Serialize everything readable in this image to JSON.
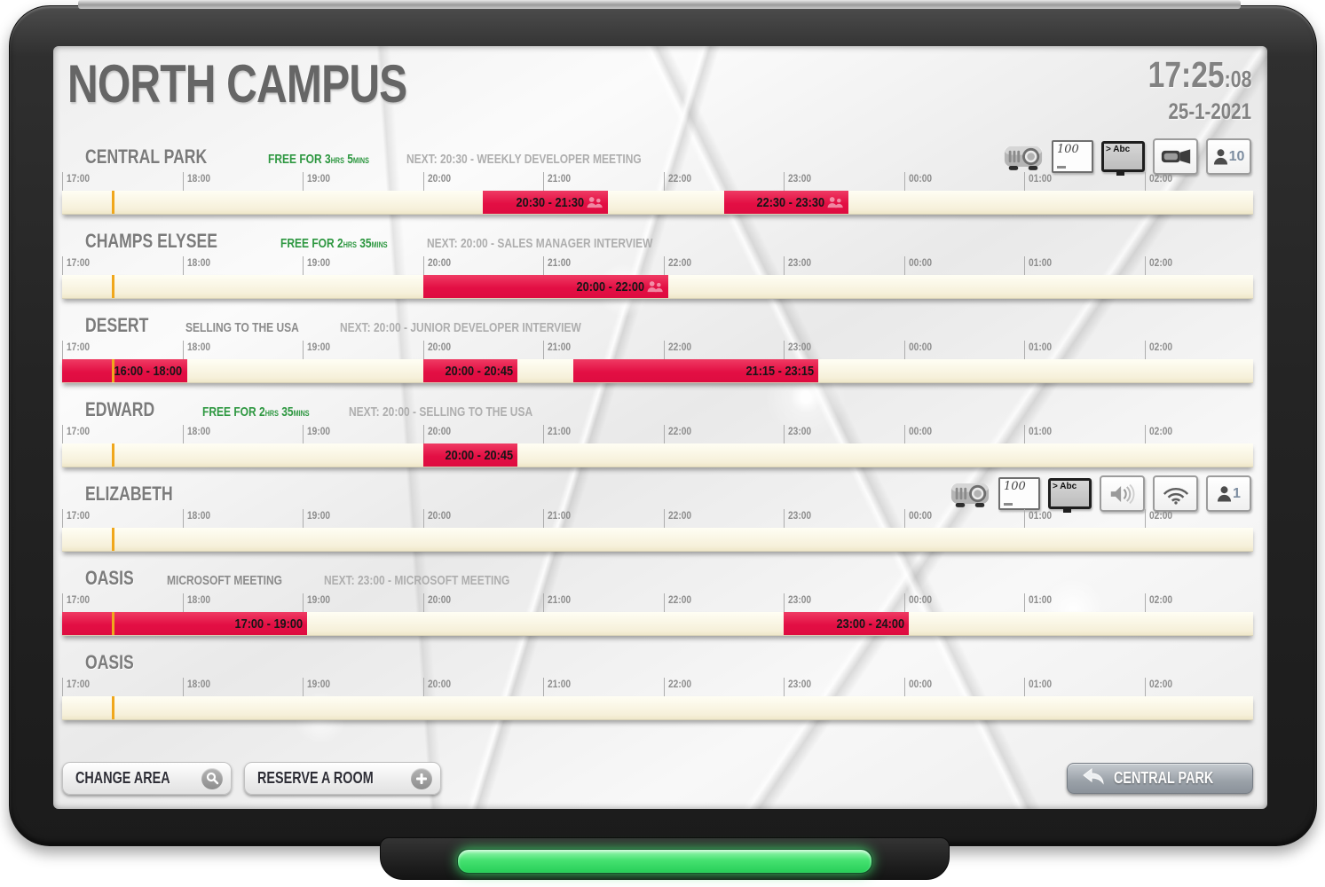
{
  "header": {
    "title": "NORTH CAMPUS",
    "clock_hm": "17:25",
    "clock_sec": ":08",
    "date": "25-1-2021"
  },
  "timeline": {
    "tick_labels": [
      "17:00",
      "18:00",
      "19:00",
      "20:00",
      "21:00",
      "22:00",
      "23:00",
      "00:00",
      "01:00",
      "02:00"
    ],
    "hour_step_minutes": 60,
    "total_minutes": 594,
    "current_time": "17:25",
    "current_minutes": 25
  },
  "rooms": [
    {
      "name": "CENTRAL PARK",
      "status": {
        "type": "free",
        "prefix": "FREE FOR",
        "hours": "3",
        "hours_unit": "HRS",
        "mins": "5",
        "mins_unit": "MINS"
      },
      "next": "NEXT: 20:30 - WEEKLY DEVELOPER MEETING",
      "icons": [
        {
          "type": "projector"
        },
        {
          "type": "whiteboard",
          "value": "100"
        },
        {
          "type": "tv",
          "value": "> Abc"
        },
        {
          "type": "videocam"
        },
        {
          "type": "capacity",
          "value": "10"
        }
      ],
      "bookings": [
        {
          "label": "20:30 - 21:30",
          "start_min": 210,
          "end_min": 270,
          "people_icon": true
        },
        {
          "label": "22:30 - 23:30",
          "start_min": 330,
          "end_min": 390,
          "people_icon": true
        }
      ]
    },
    {
      "name": "CHAMPS ELYSEE",
      "status": {
        "type": "free",
        "prefix": "FREE FOR",
        "hours": "2",
        "hours_unit": "HRS",
        "mins": "35",
        "mins_unit": "MINS"
      },
      "next": "NEXT: 20:00 - SALES MANAGER INTERVIEW",
      "icons": [],
      "bookings": [
        {
          "label": "20:00 - 22:00",
          "start_min": 180,
          "end_min": 300,
          "people_icon": true
        }
      ]
    },
    {
      "name": "DESERT",
      "status": {
        "type": "meeting",
        "label": "SELLING TO THE USA"
      },
      "next": "NEXT: 20:00 - JUNIOR DEVELOPER INTERVIEW",
      "icons": [],
      "bookings": [
        {
          "label": "16:00 - 18:00",
          "start_min": -60,
          "end_min": 60,
          "people_icon": false
        },
        {
          "label": "20:00 - 20:45",
          "start_min": 180,
          "end_min": 225,
          "people_icon": false
        },
        {
          "label": "21:15 - 23:15",
          "start_min": 255,
          "end_min": 375,
          "people_icon": false
        }
      ]
    },
    {
      "name": "EDWARD",
      "status": {
        "type": "free",
        "prefix": "FREE FOR",
        "hours": "2",
        "hours_unit": "HRS",
        "mins": "35",
        "mins_unit": "MINS"
      },
      "next": "NEXT: 20:00 - SELLING TO THE USA",
      "icons": [],
      "bookings": [
        {
          "label": "20:00 - 20:45",
          "start_min": 180,
          "end_min": 225,
          "people_icon": false
        }
      ]
    },
    {
      "name": "ELIZABETH",
      "status": {
        "type": "none"
      },
      "next": "",
      "icons": [
        {
          "type": "projector"
        },
        {
          "type": "whiteboard",
          "value": "100"
        },
        {
          "type": "tv",
          "value": "> Abc"
        },
        {
          "type": "speaker"
        },
        {
          "type": "wifi"
        },
        {
          "type": "capacity",
          "value": "1"
        }
      ],
      "bookings": []
    },
    {
      "name": "OASIS",
      "status": {
        "type": "meeting",
        "label": "MICROSOFT MEETING"
      },
      "next": "NEXT: 23:00 - MICROSOFT MEETING",
      "icons": [],
      "bookings": [
        {
          "label": "17:00 - 19:00",
          "start_min": 0,
          "end_min": 120,
          "people_icon": false
        },
        {
          "label": "23:00 - 24:00",
          "start_min": 360,
          "end_min": 420,
          "people_icon": false
        }
      ]
    },
    {
      "name": "OASIS",
      "status": {
        "type": "none"
      },
      "next": "",
      "icons": [],
      "bookings": []
    }
  ],
  "footer": {
    "change_area_label": "CHANGE AREA",
    "reserve_room_label": "RESERVE A ROOM",
    "back_label": "CENTRAL PARK"
  },
  "colors": {
    "booking_red": "#e30f44",
    "free_green": "#2d9740",
    "now_line_orange": "#f0a71c",
    "led_green": "#3fe06c",
    "title_gray": "#666666"
  }
}
